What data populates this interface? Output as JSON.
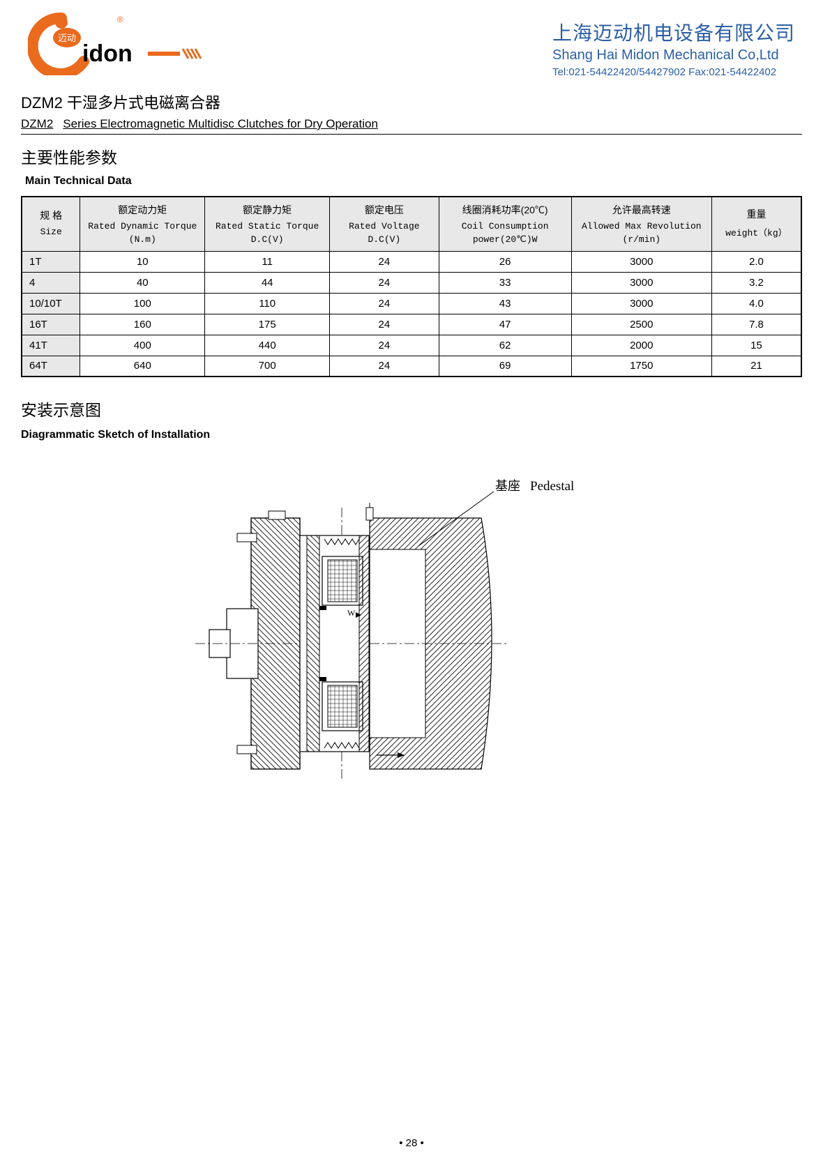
{
  "logo": {
    "brand_cn": "迈动",
    "brand_en": "idon",
    "reg_mark": "®",
    "circle_color": "#ea6a1e",
    "text_color": "#000000",
    "stripe_color": "#ea6a1e"
  },
  "company": {
    "name_cn": "上海迈动机电设备有限公司",
    "name_en": "Shang Hai Midon Mechanical Co,Ltd",
    "tel": "Tel:021-54422420/54427902 Fax:021-54422402",
    "color": "#2c5fa5"
  },
  "product": {
    "title_cn": "DZM2 干湿多片式电磁离合器",
    "title_en_code": "DZM2",
    "title_en_rest": "Series Electromagnetic Multidisc Clutches for Dry Operation"
  },
  "tech": {
    "heading_cn": "主要性能参数",
    "heading_en": "Main Technical Data"
  },
  "table": {
    "columns": [
      {
        "cn": "规 格",
        "en": "Size",
        "unit": ""
      },
      {
        "cn": "额定动力矩",
        "en": "Rated Dynamic Torque",
        "unit": "(N.m)"
      },
      {
        "cn": "额定静力矩",
        "en": "Rated Static Torque",
        "unit": "D.C(V)"
      },
      {
        "cn": "额定电压",
        "en": "Rated Voltage",
        "unit": "D.C(V)"
      },
      {
        "cn": "线圈消耗功率(20℃)",
        "en": "Coil Consumption",
        "unit": "power(20℃)W"
      },
      {
        "cn": "允许最高转速",
        "en": "Allowed Max Revolution",
        "unit": "(r/min)"
      },
      {
        "cn": "重量",
        "en": "weight（kg）",
        "unit": ""
      }
    ],
    "rows": [
      [
        "1T",
        "10",
        "11",
        "24",
        "26",
        "3000",
        "2.0"
      ],
      [
        "4",
        "40",
        "44",
        "24",
        "33",
        "3000",
        "3.2"
      ],
      [
        "10/10T",
        "100",
        "110",
        "24",
        "43",
        "3000",
        "4.0"
      ],
      [
        "16T",
        "160",
        "175",
        "24",
        "47",
        "2500",
        "7.8"
      ],
      [
        "41T",
        "400",
        "440",
        "24",
        "62",
        "2000",
        "15"
      ],
      [
        "64T",
        "640",
        "700",
        "24",
        "69",
        "1750",
        "21"
      ]
    ],
    "header_bg": "#e8e8e8",
    "border_color": "#000000"
  },
  "install": {
    "heading_cn": "安装示意图",
    "heading_en": "Diagrammatic Sketch of Installation",
    "label_cn": "基座",
    "label_en": "Pedestal"
  },
  "page_number": "• 28 •"
}
